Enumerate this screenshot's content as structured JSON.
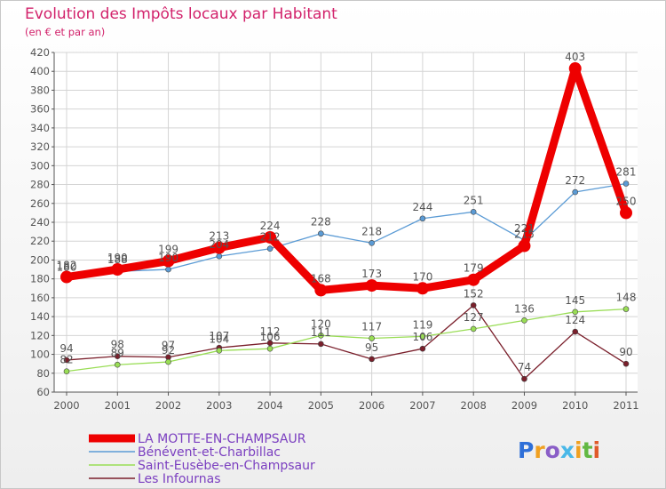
{
  "chart_data": {
    "type": "line",
    "title": "Evolution des Impôts locaux par Habitant",
    "subtitle": "(en € et par an)",
    "xlabel": "",
    "ylabel": "",
    "ylim": [
      60,
      420
    ],
    "yticks": [
      60,
      80,
      100,
      120,
      140,
      160,
      180,
      200,
      220,
      240,
      260,
      280,
      300,
      320,
      340,
      360,
      380,
      400,
      420
    ],
    "grid": true,
    "categories": [
      "2000",
      "2001",
      "2002",
      "2003",
      "2004",
      "2005",
      "2006",
      "2007",
      "2008",
      "2009",
      "2010",
      "2011"
    ],
    "series": [
      {
        "name": "LA MOTTE-EN-CHAMPSAUR",
        "color": "#ee0000",
        "values": [
          182,
          190,
          199,
          213,
          224,
          168,
          173,
          170,
          179,
          215,
          403,
          250
        ]
      },
      {
        "name": "Bénévent-et-Charbillac",
        "color": "#5b9bd5",
        "values": [
          180,
          188,
          190,
          204,
          212,
          228,
          218,
          244,
          251,
          221,
          272,
          281
        ]
      },
      {
        "name": "Saint-Eusèbe-en-Champsaur",
        "color": "#99dd55",
        "values": [
          82,
          89,
          92,
          104,
          106,
          120,
          117,
          119,
          127,
          136,
          145,
          148
        ]
      },
      {
        "name": "Les Infournas",
        "color": "#7a1f2b",
        "values": [
          94,
          98,
          97,
          107,
          112,
          111,
          95,
          106,
          152,
          74,
          124,
          90
        ]
      }
    ],
    "data_labels": [
      {
        "series": 0,
        "index": 0,
        "text": "182"
      },
      {
        "series": 0,
        "index": 1,
        "text": "190"
      },
      {
        "series": 0,
        "index": 2,
        "text": "199"
      },
      {
        "series": 0,
        "index": 3,
        "text": "213"
      },
      {
        "series": 0,
        "index": 4,
        "text": "224"
      },
      {
        "series": 0,
        "index": 5,
        "text": "168"
      },
      {
        "series": 0,
        "index": 6,
        "text": "173"
      },
      {
        "series": 0,
        "index": 7,
        "text": "170"
      },
      {
        "series": 0,
        "index": 8,
        "text": "179"
      },
      {
        "series": 0,
        "index": 9,
        "text": "215"
      },
      {
        "series": 0,
        "index": 10,
        "text": "403"
      },
      {
        "series": 0,
        "index": 11,
        "text": "250"
      },
      {
        "series": 1,
        "index": 0,
        "text": "180"
      },
      {
        "series": 1,
        "index": 1,
        "text": "188"
      },
      {
        "series": 1,
        "index": 2,
        "text": "190"
      },
      {
        "series": 1,
        "index": 3,
        "text": "204"
      },
      {
        "series": 1,
        "index": 4,
        "text": "212"
      },
      {
        "series": 1,
        "index": 5,
        "text": "228"
      },
      {
        "series": 1,
        "index": 6,
        "text": "218"
      },
      {
        "series": 1,
        "index": 7,
        "text": "244"
      },
      {
        "series": 1,
        "index": 8,
        "text": "251"
      },
      {
        "series": 1,
        "index": 9,
        "text": "221"
      },
      {
        "series": 1,
        "index": 10,
        "text": "272"
      },
      {
        "series": 1,
        "index": 11,
        "text": "281"
      },
      {
        "series": 2,
        "index": 0,
        "text": "82"
      },
      {
        "series": 2,
        "index": 1,
        "text": "89"
      },
      {
        "series": 2,
        "index": 2,
        "text": "92"
      },
      {
        "series": 2,
        "index": 3,
        "text": "104"
      },
      {
        "series": 2,
        "index": 4,
        "text": "106"
      },
      {
        "series": 2,
        "index": 5,
        "text": "120"
      },
      {
        "series": 2,
        "index": 6,
        "text": "117"
      },
      {
        "series": 2,
        "index": 7,
        "text": "119"
      },
      {
        "series": 2,
        "index": 8,
        "text": "127"
      },
      {
        "series": 2,
        "index": 9,
        "text": "136"
      },
      {
        "series": 2,
        "index": 10,
        "text": "145"
      },
      {
        "series": 2,
        "index": 11,
        "text": "148"
      },
      {
        "series": 3,
        "index": 0,
        "text": "94"
      },
      {
        "series": 3,
        "index": 1,
        "text": "98"
      },
      {
        "series": 3,
        "index": 2,
        "text": "97"
      },
      {
        "series": 3,
        "index": 3,
        "text": "107"
      },
      {
        "series": 3,
        "index": 4,
        "text": "112"
      },
      {
        "series": 3,
        "index": 5,
        "text": "111"
      },
      {
        "series": 3,
        "index": 6,
        "text": "95"
      },
      {
        "series": 3,
        "index": 7,
        "text": "106"
      },
      {
        "series": 3,
        "index": 8,
        "text": "152"
      },
      {
        "series": 3,
        "index": 9,
        "text": "74"
      },
      {
        "series": 3,
        "index": 10,
        "text": "124"
      },
      {
        "series": 3,
        "index": 11,
        "text": "90"
      }
    ]
  },
  "logo": {
    "text": "Proxiti",
    "colors": [
      "#2e6fd8",
      "#f0a020",
      "#8a5ec7",
      "#49b8e8",
      "#f0a020",
      "#62b842",
      "#e05a2a"
    ]
  }
}
